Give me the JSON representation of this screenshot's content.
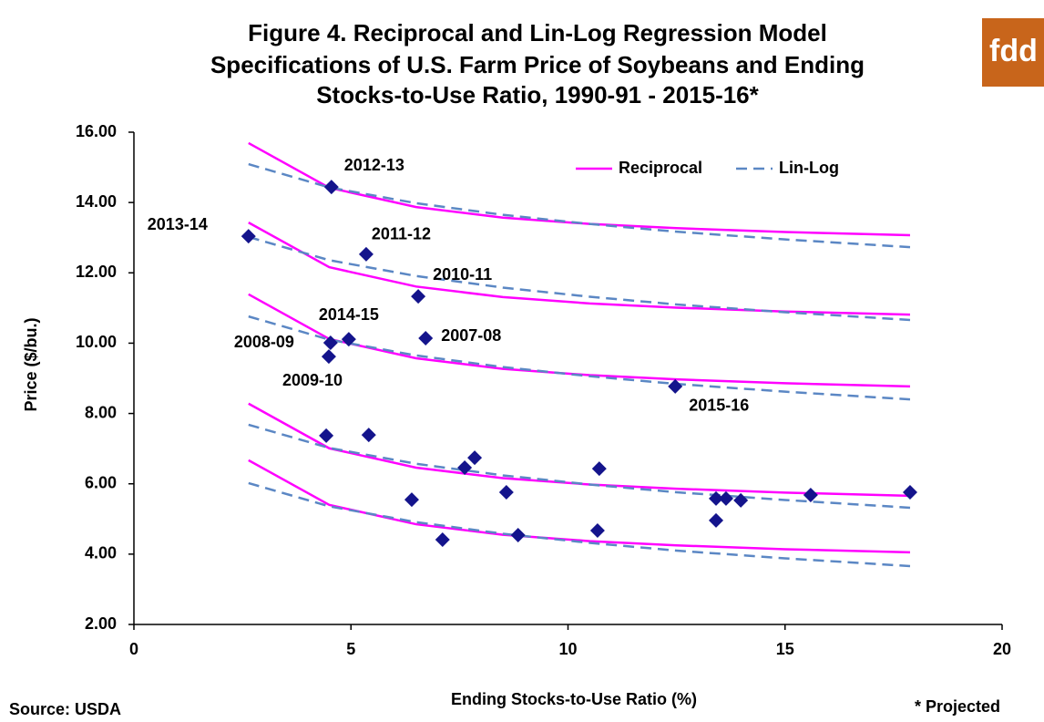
{
  "chart_data": {
    "type": "scatter",
    "title": [
      "Figure 4. Reciprocal and Lin-Log Regression Model",
      "Specifications of U.S. Farm Price of Soybeans and Ending",
      "Stocks-to-Use Ratio, 1990-91 - 2015-16*"
    ],
    "xlabel": "Ending Stocks-to-Use Ratio (%)",
    "ylabel": "Price ($/bu.)",
    "source": "Source: USDA",
    "note": "* Projected",
    "logo": "fdd",
    "xlim": [
      0,
      20
    ],
    "xticks": [
      0,
      5,
      10,
      15,
      20
    ],
    "ylim": [
      2,
      16
    ],
    "yticks": [
      {
        "value": 2,
        "label": "2.00"
      },
      {
        "value": 4,
        "label": "4.00"
      },
      {
        "value": 6,
        "label": "6.00"
      },
      {
        "value": 8,
        "label": "8.00"
      },
      {
        "value": 10,
        "label": "10.00"
      },
      {
        "value": 12,
        "label": "12.00"
      },
      {
        "value": 14,
        "label": "14.00"
      },
      {
        "value": 16,
        "label": "16.00"
      }
    ],
    "legend": "top-right",
    "points": {
      "color": "#14148c",
      "x": [
        2.64,
        4.55,
        5.35,
        6.55,
        4.95,
        4.53,
        4.49,
        6.72,
        12.47,
        4.43,
        5.41,
        6.4,
        7.11,
        7.62,
        7.85,
        8.58,
        8.85,
        10.72,
        10.68,
        13.41,
        13.41,
        13.64,
        13.98,
        15.59,
        17.88
      ],
      "y": [
        13.04,
        14.44,
        12.53,
        11.33,
        10.11,
        10.01,
        9.62,
        10.14,
        8.77,
        7.37,
        7.39,
        5.55,
        4.41,
        6.46,
        6.74,
        5.76,
        4.54,
        6.43,
        4.67,
        4.96,
        5.58,
        5.58,
        5.53,
        5.68,
        5.76
      ],
      "labels": [
        "2013-14",
        "2012-13",
        "2011-12",
        "2010-11",
        "2014-15",
        "2008-09",
        "2009-10",
        "2007-08",
        "2015-16",
        null,
        null,
        null,
        null,
        null,
        null,
        null,
        null,
        null,
        null,
        null,
        null,
        null,
        null,
        null,
        null
      ]
    },
    "curve_x": [
      2.64,
      4.5,
      6.5,
      8.5,
      10.5,
      12.5,
      15,
      17.88
    ],
    "series": [
      {
        "name": "Reciprocal",
        "color": "#ff00ff",
        "dashed": false,
        "lines": [
          [
            15.69,
            14.42,
            13.87,
            13.57,
            13.39,
            13.27,
            13.16,
            13.07
          ],
          [
            13.43,
            12.16,
            11.61,
            11.31,
            11.13,
            11.01,
            10.9,
            10.81
          ],
          [
            11.39,
            10.12,
            9.57,
            9.27,
            9.09,
            8.97,
            8.86,
            8.77
          ],
          [
            8.28,
            7.01,
            6.46,
            6.16,
            5.98,
            5.86,
            5.75,
            5.66
          ],
          [
            6.67,
            5.4,
            4.85,
            4.55,
            4.37,
            4.25,
            4.14,
            4.05
          ]
        ]
      },
      {
        "name": "Lin-Log",
        "color": "#5b87c4",
        "dashed": true,
        "lines": [
          [
            15.09,
            14.43,
            13.98,
            13.65,
            13.39,
            13.17,
            12.95,
            12.73
          ],
          [
            13.02,
            12.36,
            11.91,
            11.58,
            11.32,
            11.1,
            10.88,
            10.66
          ],
          [
            10.76,
            10.1,
            9.65,
            9.32,
            9.06,
            8.84,
            8.62,
            8.4
          ],
          [
            7.68,
            7.02,
            6.57,
            6.24,
            5.98,
            5.76,
            5.54,
            5.32
          ],
          [
            6.02,
            5.36,
            4.91,
            4.58,
            4.32,
            4.1,
            3.88,
            3.66
          ]
        ]
      }
    ]
  }
}
